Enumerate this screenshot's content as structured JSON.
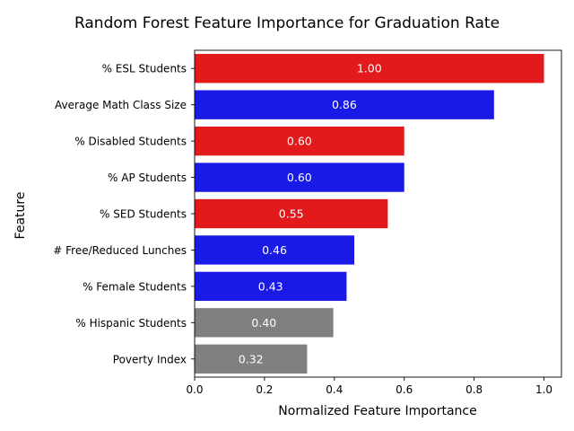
{
  "chart_data": {
    "type": "bar",
    "orientation": "horizontal",
    "title": "Random Forest Feature Importance for Graduation Rate",
    "xlabel": "Normalized Feature Importance",
    "ylabel": "Feature",
    "xlim": [
      0,
      1.05
    ],
    "xticks": [
      "0.0",
      "0.2",
      "0.4",
      "0.6",
      "0.8",
      "1.0"
    ],
    "grid": false,
    "legend": "none",
    "categories": [
      "% ESL Students",
      "Average Math Class Size",
      "% Disabled Students",
      "% AP Students",
      "% SED Students",
      "# Free/Reduced Lunches",
      "% Female Students",
      "% Hispanic Students",
      "Poverty Index"
    ],
    "values": [
      1.0,
      0.86,
      0.6,
      0.6,
      0.55,
      0.46,
      0.43,
      0.4,
      0.32
    ],
    "bar_values": [
      1.0,
      0.857,
      0.6,
      0.6,
      0.553,
      0.457,
      0.435,
      0.397,
      0.322
    ],
    "data_labels": [
      "1.00",
      "0.86",
      "0.60",
      "0.60",
      "0.55",
      "0.46",
      "0.43",
      "0.40",
      "0.32"
    ],
    "colors": [
      "#e31a1c",
      "#1a1ae6",
      "#e31a1c",
      "#1a1ae6",
      "#e31a1c",
      "#1a1ae6",
      "#1a1ae6",
      "#808080",
      "#808080"
    ]
  }
}
